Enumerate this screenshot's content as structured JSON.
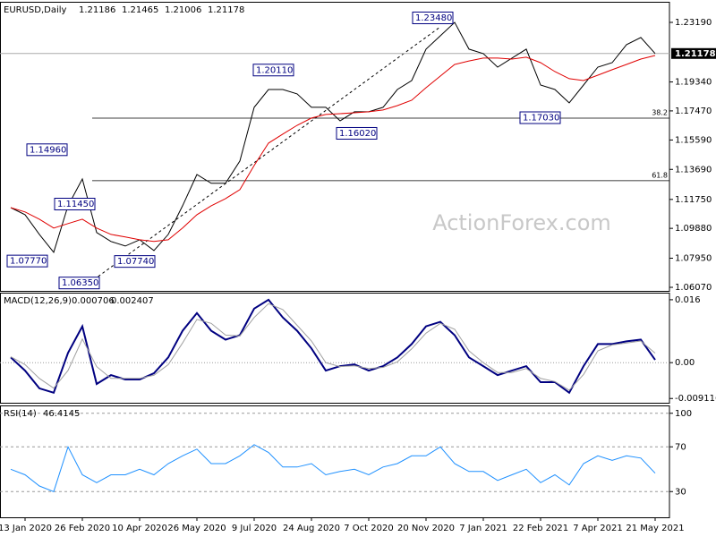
{
  "chart_data": [
    {
      "type": "line",
      "title": "EURUSD,Daily",
      "header_values": [
        1.21186,
        1.21465,
        1.21006,
        1.21178
      ],
      "watermark": "ActionForex.com",
      "categories": [
        null,
        "13 Jan 2020",
        null,
        null,
        null,
        "26 Feb 2020",
        null,
        null,
        null,
        "10 Apr 2020",
        null,
        null,
        null,
        "26 May 2020",
        null,
        null,
        null,
        "9 Jul 2020",
        null,
        null,
        null,
        "24 Aug 2020",
        null,
        null,
        null,
        "7 Oct 2020",
        null,
        null,
        null,
        "20 Nov 2020",
        null,
        null,
        null,
        "7 Jan 2021",
        null,
        null,
        null,
        "22 Feb 2021",
        null,
        null,
        null,
        "7 Apr 2021",
        null,
        null,
        null,
        "21 May 2021"
      ],
      "series": [
        {
          "color": "#000000",
          "values": [
            1.1122,
            1.1076,
            1.0949,
            1.0833,
            1.1134,
            1.1307,
            1.0961,
            1.0903,
            1.0874,
            1.0914,
            1.0845,
            1.0949,
            1.1134,
            1.1336,
            1.1279,
            1.1279,
            1.1423,
            1.177,
            1.1885,
            1.1885,
            1.1857,
            1.177,
            1.177,
            1.1683,
            1.1741,
            1.1741,
            1.177,
            1.1885,
            1.1943,
            1.2146,
            1.2232,
            1.2319,
            1.2146,
            1.2117,
            1.203,
            1.2088,
            1.2146,
            1.1914,
            1.1885,
            1.1799,
            1.1914,
            1.203,
            1.2059,
            1.2175,
            1.2221,
            1.21178
          ]
        },
        {
          "color": "#e00000",
          "values": [
            1.1122,
            1.1094,
            1.1047,
            1.099,
            1.1019,
            1.1047,
            1.099,
            1.0949,
            1.0932,
            1.0914,
            1.0903,
            1.0914,
            1.099,
            1.1076,
            1.1134,
            1.118,
            1.1238,
            1.1394,
            1.1539,
            1.1597,
            1.1654,
            1.1701,
            1.1724,
            1.1729,
            1.1735,
            1.1741,
            1.1753,
            1.1781,
            1.1816,
            1.1897,
            1.1972,
            1.2047,
            1.207,
            1.2088,
            1.2088,
            1.2082,
            1.2094,
            1.2059,
            1.2001,
            1.1955,
            1.1943,
            1.1978,
            1.2013,
            1.2047,
            1.2082,
            1.2105
          ]
        }
      ],
      "ylim": [
        1.0584,
        1.2452
      ],
      "yticks": [
        {
          "value": 1.2319,
          "label": "1.23190"
        },
        {
          "value": 1.1934,
          "label": "1.19340"
        },
        {
          "value": 1.1747,
          "label": "1.17470"
        },
        {
          "value": 1.1559,
          "label": "1.15590"
        },
        {
          "value": 1.1369,
          "label": "1.13690"
        },
        {
          "value": 1.1175,
          "label": "1.11750"
        },
        {
          "value": 1.0988,
          "label": "1.09880"
        },
        {
          "value": 1.0795,
          "label": "1.07950"
        },
        {
          "value": 1.0607,
          "label": "1.06070"
        }
      ],
      "annotations": [
        {
          "value": 1.2348,
          "label": "1.23480"
        },
        {
          "value": 1.2011,
          "label": "1.20110"
        },
        {
          "value": 1.1496,
          "label": "1.14960"
        },
        {
          "value": 1.1145,
          "label": "1.11450"
        },
        {
          "value": 1.0777,
          "label": "1.07770"
        },
        {
          "value": 1.0774,
          "label": "1.07740"
        },
        {
          "value": 1.0635,
          "label": "1.06350"
        },
        {
          "value": 1.1602,
          "label": "1.16020"
        },
        {
          "value": 1.1703,
          "label": "1.17030"
        }
      ],
      "fib_levels": [
        {
          "value": 1.17,
          "label": "38.2"
        },
        {
          "value": 1.1296,
          "label": "61.8"
        }
      ]
    },
    {
      "type": "line",
      "title": "MACD(12,26,9)",
      "series": [
        {
          "color": "#000080",
          "values": [
            0.00135,
            -0.00203,
            -0.00654,
            -0.00766,
            0.00248,
            0.00924,
            -0.00541,
            -0.00316,
            -0.00428,
            -0.00428,
            -0.0027,
            0.00135,
            0.00811,
            0.01262,
            0.00811,
            0.00586,
            0.00699,
            0.01375,
            0.016,
            0.0115,
            0.00811,
            0.00361,
            -0.00203,
            -0.0009,
            -0.00045,
            -0.00203,
            -0.0009,
            0.00135,
            0.00473,
            0.00924,
            0.01037,
            0.00699,
            0.00135,
            -0.0009,
            -0.00316,
            -0.00203,
            -0.0009,
            -0.00496,
            -0.00496,
            -0.00766,
            -0.0009,
            0.00473,
            0.00473,
            0.00541,
            0.00586,
            0.000706
          ]
        },
        {
          "color": "#a0a0a0",
          "values": [
            0.0015,
            -0.0005,
            -0.004,
            -0.0065,
            -0.002,
            0.006,
            -0.001,
            -0.004,
            -0.004,
            -0.004,
            -0.0032,
            -0.0005,
            0.005,
            0.011,
            0.01,
            0.007,
            0.0068,
            0.0115,
            0.015,
            0.0135,
            0.0095,
            0.0055,
            0,
            -0.001,
            -0.0008,
            -0.0015,
            -0.0012,
            0.0002,
            0.0035,
            0.0075,
            0.01,
            0.0085,
            0.003,
            0,
            -0.0025,
            -0.0025,
            -0.0015,
            -0.004,
            -0.0048,
            -0.007,
            -0.003,
            0.003,
            0.0045,
            0.005,
            0.0055,
            0.002407
          ]
        }
      ],
      "ylim": [
        -0.0102,
        0.0178
      ],
      "yticks": [
        0.016,
        {
          "value": 0,
          "label": "0.00"
        },
        -0.009116
      ],
      "zero_line": true
    },
    {
      "type": "line",
      "title": "RSI(14)",
      "series": [
        {
          "color": "#1e90ff",
          "values": [
            50,
            45,
            35,
            30,
            70,
            45,
            38,
            45,
            45,
            50,
            45,
            55,
            62,
            68,
            55,
            55,
            62,
            72,
            65,
            52,
            52,
            55,
            45,
            48,
            50,
            45,
            52,
            55,
            62,
            62,
            70,
            55,
            48,
            48,
            40,
            45,
            50,
            38,
            45,
            36,
            55,
            62,
            58,
            62,
            60,
            46.4145
          ]
        }
      ],
      "ylim": [
        7,
        107
      ],
      "yticks": [
        100,
        70,
        30
      ],
      "grid": true
    }
  ]
}
